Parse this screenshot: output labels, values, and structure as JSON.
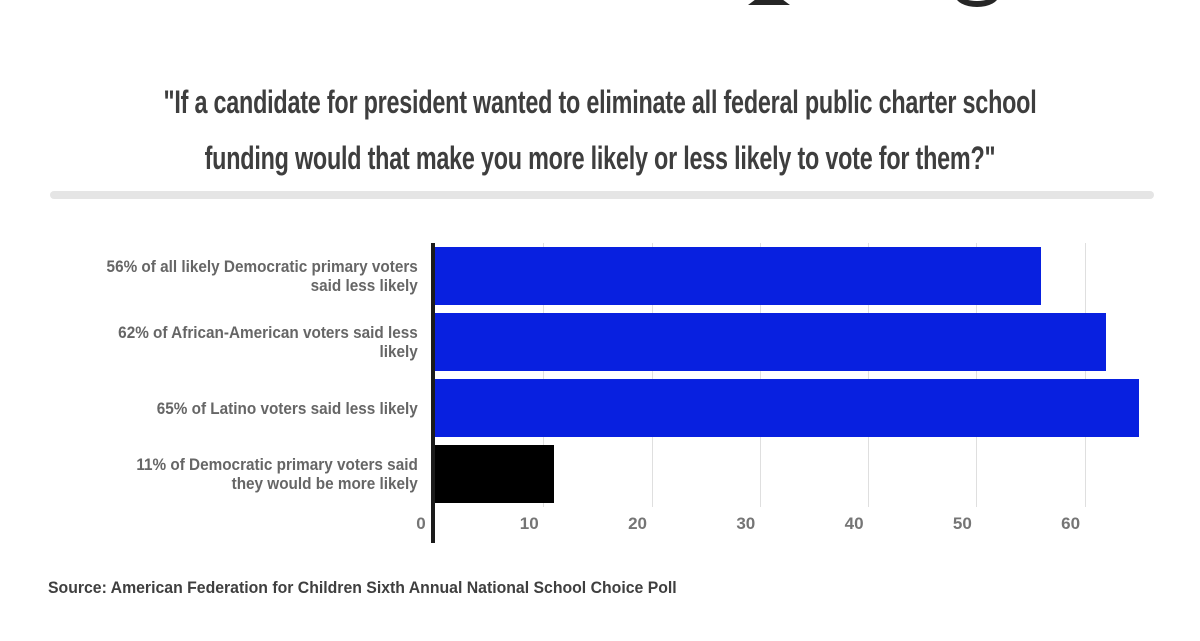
{
  "decor": {
    "top_fragments": [
      "cropped-letter-descender-left",
      "cropped-letter-descender-right"
    ]
  },
  "chart_data": {
    "type": "bar",
    "orientation": "horizontal",
    "title": "\"If a candidate for president wanted to eliminate all federal public charter school funding would that make you more likely or less likely to vote for them?\"",
    "title_lines": [
      "\"If a candidate for president wanted to eliminate all federal public charter school",
      "funding would that make you more likely or less likely to vote for them?\""
    ],
    "categories": [
      "56% of all likely Democratic primary voters said less likely",
      "62% of African-American voters said less likely",
      "65% of Latino voters said less likely",
      "11% of Democratic primary voters said they would be more likely"
    ],
    "categories_lines": [
      [
        "56% of all likely Democratic primary voters",
        "said less likely"
      ],
      [
        "62% of African-American voters said less",
        "likely"
      ],
      [
        "65% of Latino voters said less likely"
      ],
      [
        "11% of Democratic primary voters said",
        "they would be more likely"
      ]
    ],
    "values": [
      56,
      62,
      65,
      11
    ],
    "bar_colors": [
      "#0820e0",
      "#0820e0",
      "#0820e0",
      "#000000"
    ],
    "xlabel": "",
    "ylabel": "",
    "xlim": [
      0,
      66.5
    ],
    "xticks": [
      0,
      10,
      20,
      30,
      40,
      50,
      60
    ],
    "grid": "vertical-gridlines-on",
    "legend": "none",
    "source": "Source: American Federation for Children Sixth Annual National School Choice Poll"
  },
  "colors": {
    "bar_blue": "#0820e0",
    "bar_black": "#000000",
    "title_text": "#3e3e3e",
    "label_text": "#666666",
    "tick_text": "#757575",
    "gridline": "#dfdfdf",
    "axis_line": "#1b1b1b",
    "divider": "#e5e5e5",
    "background": "#ffffff"
  }
}
